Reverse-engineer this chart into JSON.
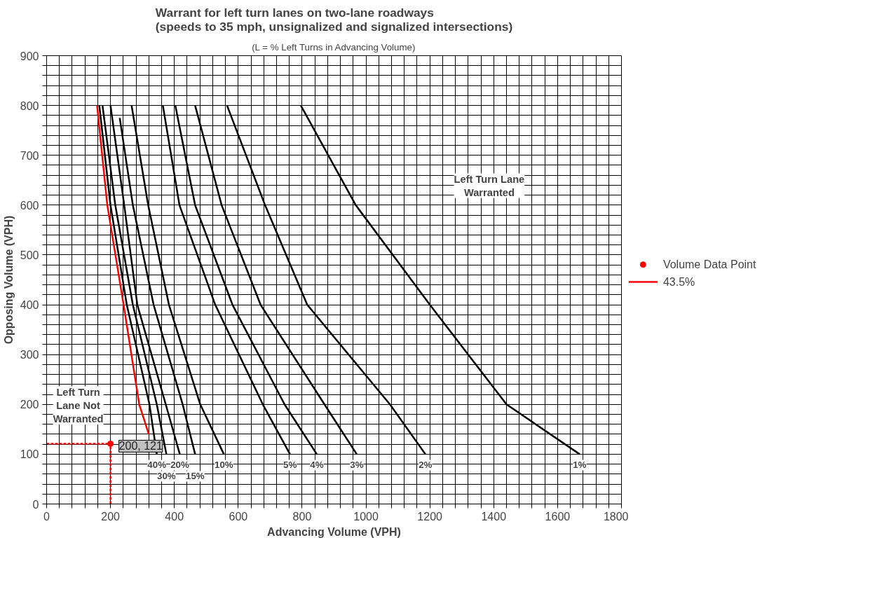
{
  "chart_data": {
    "type": "line",
    "title": "Warrant for left turn lanes on two-lane roadways\n(speeds to 35 mph, unsignalized and signalized intersections)",
    "subtitle": "(L = % Left Turns in Advancing Volume)",
    "xlabel": "Advancing Volume (VPH)",
    "ylabel": "Opposing Volume (VPH)",
    "xlim": [
      0,
      1800
    ],
    "ylim": [
      0,
      900
    ],
    "xticks": [
      0,
      {
        "value": 40,
        "label": null
      },
      {
        "value": 80,
        "label": null
      },
      {
        "value": 120,
        "label": null
      },
      {
        "value": 160,
        "label": null
      },
      200,
      {
        "value": 240,
        "label": null
      },
      {
        "value": 280,
        "label": null
      },
      {
        "value": 320,
        "label": null
      },
      {
        "value": 360,
        "label": null
      },
      400,
      {
        "value": 440,
        "label": null
      },
      {
        "value": 480,
        "label": null
      },
      {
        "value": 520,
        "label": null
      },
      {
        "value": 560,
        "label": null
      },
      600,
      {
        "value": 640,
        "label": null
      },
      {
        "value": 680,
        "label": null
      },
      {
        "value": 720,
        "label": null
      },
      {
        "value": 760,
        "label": null
      },
      800,
      {
        "value": 840,
        "label": null
      },
      {
        "value": 880,
        "label": null
      },
      {
        "value": 920,
        "label": null
      },
      {
        "value": 960,
        "label": null
      },
      1000,
      {
        "value": 1040,
        "label": null
      },
      {
        "value": 1080,
        "label": null
      },
      {
        "value": 1120,
        "label": null
      },
      {
        "value": 1160,
        "label": null
      },
      1200,
      {
        "value": 1240,
        "label": null
      },
      {
        "value": 1280,
        "label": null
      },
      {
        "value": 1320,
        "label": null
      },
      {
        "value": 1360,
        "label": null
      },
      1400,
      {
        "value": 1440,
        "label": null
      },
      {
        "value": 1480,
        "label": null
      },
      {
        "value": 1520,
        "label": null
      },
      {
        "value": 1560,
        "label": null
      },
      1600,
      {
        "value": 1640,
        "label": null
      },
      {
        "value": 1680,
        "label": null
      },
      {
        "value": 1720,
        "label": null
      },
      {
        "value": 1760,
        "label": null
      },
      1800
    ],
    "yticks": [
      0,
      {
        "value": 20,
        "label": null
      },
      {
        "value": 40,
        "label": null
      },
      {
        "value": 60,
        "label": null
      },
      {
        "value": 80,
        "label": null
      },
      100,
      {
        "value": 120,
        "label": null
      },
      {
        "value": 140,
        "label": null
      },
      {
        "value": 160,
        "label": null
      },
      {
        "value": 180,
        "label": null
      },
      200,
      {
        "value": 220,
        "label": null
      },
      {
        "value": 240,
        "label": null
      },
      {
        "value": 260,
        "label": null
      },
      {
        "value": 280,
        "label": null
      },
      300,
      {
        "value": 320,
        "label": null
      },
      {
        "value": 340,
        "label": null
      },
      {
        "value": 360,
        "label": null
      },
      {
        "value": 380,
        "label": null
      },
      400,
      {
        "value": 420,
        "label": null
      },
      {
        "value": 440,
        "label": null
      },
      {
        "value": 460,
        "label": null
      },
      {
        "value": 480,
        "label": null
      },
      500,
      {
        "value": 520,
        "label": null
      },
      {
        "value": 540,
        "label": null
      },
      {
        "value": 560,
        "label": null
      },
      {
        "value": 580,
        "label": null
      },
      600,
      {
        "value": 620,
        "label": null
      },
      {
        "value": 640,
        "label": null
      },
      {
        "value": 660,
        "label": null
      },
      {
        "value": 680,
        "label": null
      },
      700,
      {
        "value": 720,
        "label": null
      },
      {
        "value": 740,
        "label": null
      },
      {
        "value": 760,
        "label": null
      },
      {
        "value": 780,
        "label": null
      },
      800,
      {
        "value": 820,
        "label": null
      },
      {
        "value": 840,
        "label": null
      },
      {
        "value": 860,
        "label": null
      },
      {
        "value": 880,
        "label": null
      },
      900
    ],
    "grid": true,
    "legend": "right",
    "series": [
      {
        "name": "1%",
        "color": "#000000",
        "x": [
          796,
          968,
          1200,
          1440,
          1669
        ],
        "values": [
          800,
          600,
          400,
          200,
          100
        ]
      },
      {
        "name": "2%",
        "color": "#000000",
        "x": [
          565,
          684,
          816,
          1075,
          1186
        ],
        "values": [
          800,
          600,
          400,
          200,
          100
        ]
      },
      {
        "name": "3%",
        "color": "#000000",
        "x": [
          465,
          548,
          670,
          870,
          971
        ],
        "values": [
          800,
          600,
          400,
          200,
          100
        ]
      },
      {
        "name": "4%",
        "color": "#000000",
        "x": [
          403,
          465,
          582,
          745,
          846
        ],
        "values": [
          800,
          600,
          400,
          200,
          100
        ]
      },
      {
        "name": "5%",
        "color": "#000000",
        "x": [
          364,
          416,
          528,
          677,
          762
        ],
        "values": [
          800,
          600,
          400,
          200,
          100
        ]
      },
      {
        "name": "10%",
        "color": "#000000",
        "x": [
          266,
          318,
          383,
          481,
          555
        ],
        "values": [
          800,
          600,
          400,
          200,
          100
        ]
      },
      {
        "name": "15%",
        "color": "#000000",
        "x": [
          229,
          270,
          335,
          426,
          465
        ],
        "values": [
          775,
          600,
          400,
          200,
          100
        ]
      },
      {
        "name": "20%",
        "color": "#000000",
        "x": [
          200,
          243,
          284,
          373,
          417
        ],
        "values": [
          800,
          600,
          400,
          200,
          100
        ]
      },
      {
        "name": "30%",
        "color": "#000000",
        "x": [
          175,
          215,
          270,
          345,
          375
        ],
        "values": [
          800,
          600,
          400,
          200,
          100
        ]
      },
      {
        "name": "40%",
        "color": "#000000",
        "x": [
          165,
          200,
          251,
          322,
          345
        ],
        "values": [
          800,
          600,
          400,
          200,
          100
        ]
      },
      {
        "name": "43.5%",
        "color": "#ff0000",
        "x": [
          158,
          190,
          241,
          290,
          320
        ],
        "values": [
          800,
          600,
          400,
          200,
          140
        ]
      },
      {
        "color": "#ff0000",
        "line_style": "dashed",
        "x": [
          0,
          200
        ],
        "values": [
          121,
          121
        ]
      },
      {
        "color": "#ff0000",
        "line_style": "dashed",
        "x": [
          200,
          200
        ],
        "values": [
          0,
          121
        ]
      },
      {
        "type": "scatter",
        "color": "#ff0000",
        "name": "Volume Data Point",
        "x": [
          200
        ],
        "values": [
          121
        ]
      }
    ],
    "annotations": [
      {
        "text": "200, 121",
        "x": 200,
        "y": 121
      },
      "Left Turn\nLane Not\nWarranted",
      "Left Turn Lane\nWarranted"
    ]
  }
}
